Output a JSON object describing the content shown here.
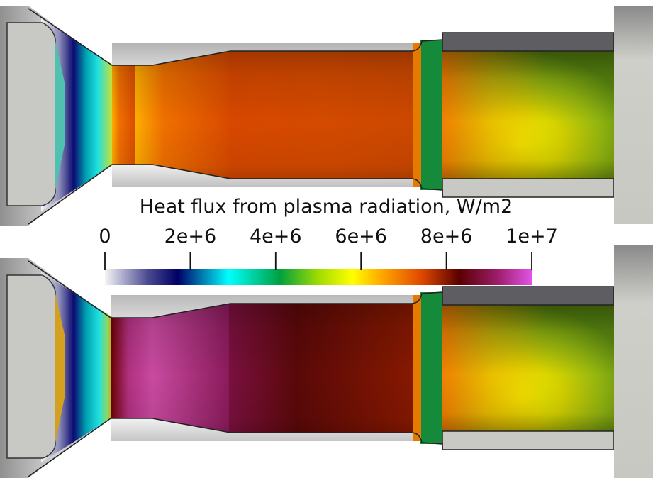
{
  "colorbar": {
    "title": "Heat flux from plasma radiation, W/m2",
    "min": 0,
    "max": 10000000,
    "tick_labels": [
      "0",
      "2e+6",
      "4e+6",
      "6e+6",
      "8e+6",
      "1e+7"
    ],
    "tick_values": [
      0,
      2000000,
      4000000,
      6000000,
      8000000,
      10000000
    ],
    "colormap_stops": [
      {
        "value": 0.0,
        "color": "#f4f4f6"
      },
      {
        "value": 0.1,
        "color": "#4b4b92"
      },
      {
        "value": 0.17,
        "color": "#000066"
      },
      {
        "value": 0.29,
        "color": "#00ffff"
      },
      {
        "value": 0.41,
        "color": "#00a040"
      },
      {
        "value": 0.5,
        "color": "#a0dc00"
      },
      {
        "value": 0.58,
        "color": "#ffff00"
      },
      {
        "value": 0.65,
        "color": "#ffa500"
      },
      {
        "value": 0.74,
        "color": "#e04a00"
      },
      {
        "value": 0.83,
        "color": "#5a0000"
      },
      {
        "value": 0.92,
        "color": "#9c1d6a"
      },
      {
        "value": 1.0,
        "color": "#e254e6"
      }
    ]
  }
}
